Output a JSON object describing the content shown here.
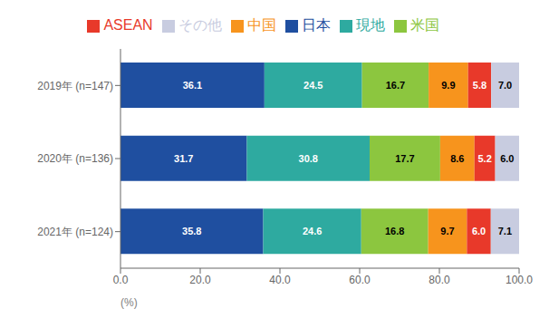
{
  "chart_data": {
    "type": "bar",
    "orientation": "horizontal",
    "stacked": true,
    "data_labels": true,
    "legend": "top",
    "grid": false,
    "xlabel": "(%)",
    "categories": [
      "2019年 (n=147)",
      "2020年 (n=136)",
      "2021年 (n=124)"
    ],
    "series": [
      {
        "name": "日本",
        "color": "#1f4fa0",
        "values": [
          36.1,
          31.7,
          35.8
        ]
      },
      {
        "name": "現地",
        "color": "#2eaaa0",
        "values": [
          24.5,
          30.8,
          24.6
        ]
      },
      {
        "name": "米国",
        "color": "#8cc63f",
        "values": [
          16.7,
          17.7,
          16.8
        ]
      },
      {
        "name": "中国",
        "color": "#f7941d",
        "values": [
          9.9,
          8.6,
          9.7
        ]
      },
      {
        "name": "ASEAN",
        "color": "#e8392a",
        "values": [
          5.8,
          5.2,
          6.0
        ],
        "value_labels": [
          "5.8",
          "5.2",
          "6.0"
        ]
      },
      {
        "name": "その他",
        "color": "#c8cce0",
        "values": [
          7.0,
          6.0,
          7.1
        ],
        "value_labels": [
          "7.0",
          "6.0",
          "7.1"
        ]
      }
    ],
    "xlim": [
      0,
      100
    ],
    "xticks": [
      {
        "value": 0,
        "label": "0.0"
      },
      {
        "value": 20,
        "label": "20.0"
      },
      {
        "value": 40,
        "label": "40.0"
      },
      {
        "value": 60,
        "label": "60.0"
      },
      {
        "value": 80,
        "label": "80.0"
      },
      {
        "value": 100,
        "label": "100.0"
      }
    ]
  }
}
